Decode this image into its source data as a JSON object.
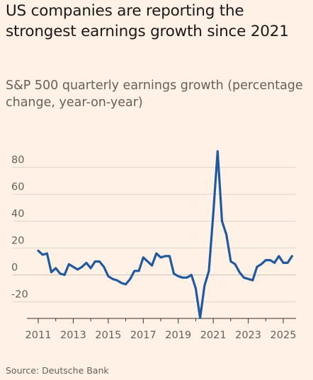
{
  "title": "US companies are reporting the strongest earnings growth since 2021",
  "subtitle": "S&P 500 quarterly earnings growth (percentage change, year-on-year)",
  "source": "Source: Deutsche Bank",
  "colors": {
    "background": "#fff1e5",
    "line": "#1f5aa0",
    "grid": "#e3d6cb",
    "axis": "#33302e"
  },
  "chart_data": {
    "type": "line",
    "title": "US companies are reporting the strongest earnings growth since 2021",
    "subtitle": "S&P 500 quarterly earnings growth (percentage change, year-on-year)",
    "xlabel": "",
    "ylabel": "",
    "ylim": [
      -28,
      94
    ],
    "xlim": [
      2011,
      2025.6
    ],
    "yticks": [
      80,
      60,
      40,
      20,
      0,
      -20
    ],
    "ytick_labels": [
      "80",
      "60",
      "40",
      "20",
      "0",
      "-20"
    ],
    "xticks": [
      2011,
      2013,
      2015,
      2017,
      2019,
      2021,
      2023,
      2025
    ],
    "xtick_labels": [
      "2011",
      "2013",
      "2015",
      "2017",
      "2019",
      "2021",
      "2023",
      "2025"
    ],
    "grid": true,
    "legend": "none",
    "x": [
      2011.0,
      2011.25,
      2011.5,
      2011.75,
      2012.0,
      2012.25,
      2012.5,
      2012.75,
      2013.0,
      2013.25,
      2013.5,
      2013.75,
      2014.0,
      2014.25,
      2014.5,
      2014.75,
      2015.0,
      2015.25,
      2015.5,
      2015.75,
      2016.0,
      2016.25,
      2016.5,
      2016.75,
      2017.0,
      2017.25,
      2017.5,
      2017.75,
      2018.0,
      2018.25,
      2018.5,
      2018.75,
      2019.0,
      2019.25,
      2019.5,
      2019.75,
      2020.0,
      2020.25,
      2020.5,
      2020.75,
      2021.0,
      2021.25,
      2021.5,
      2021.75,
      2022.0,
      2022.25,
      2022.5,
      2022.75,
      2023.0,
      2023.25,
      2023.5,
      2023.75,
      2024.0,
      2024.25,
      2024.5,
      2024.75,
      2025.0,
      2025.25,
      2025.5
    ],
    "series": [
      {
        "name": "",
        "values": [
          18,
          15,
          16,
          2,
          5,
          1,
          0,
          8,
          6,
          4,
          6,
          9,
          5,
          10,
          10,
          6,
          -1,
          -3,
          -4,
          -6,
          -7,
          -3,
          3,
          3,
          13,
          10,
          7,
          16,
          13,
          14,
          14,
          1,
          -1,
          -2,
          -2,
          0,
          -10,
          -32,
          -8,
          3,
          45,
          92,
          40,
          30,
          10,
          8,
          2,
          -2,
          -3,
          -4,
          6,
          8,
          11,
          11,
          9,
          14,
          9,
          9,
          14
        ]
      }
    ]
  }
}
